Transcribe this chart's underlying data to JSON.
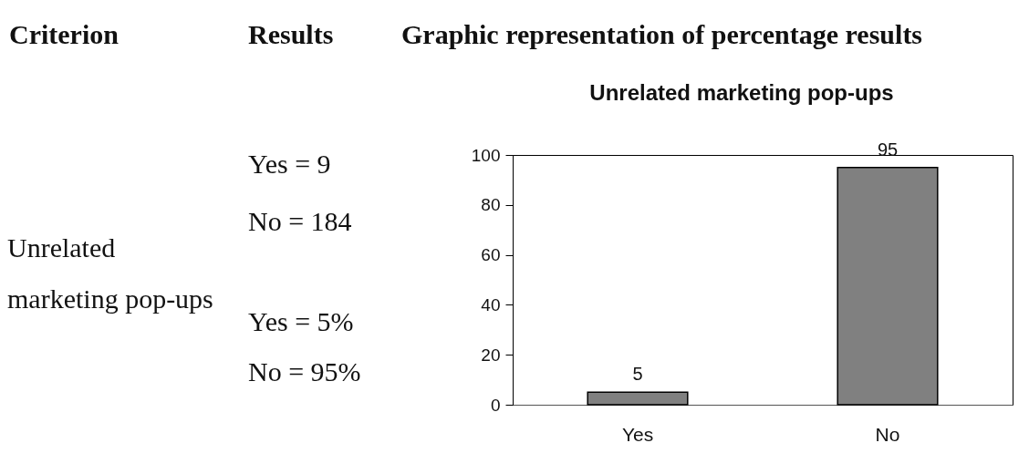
{
  "chart_data": {
    "type": "bar",
    "title": "Unrelated marketing pop-ups",
    "categories": [
      "Yes",
      "No"
    ],
    "values": [
      5,
      95
    ],
    "color": "#808080",
    "ylim": [
      0,
      100
    ],
    "yticks": [
      0,
      20,
      40,
      60,
      80,
      100
    ],
    "data_labels": true,
    "grid": false,
    "annotations": [
      "Criterion",
      "Results",
      "Graphic representation of percentage results",
      "Unrelated marketing pop-ups",
      "Yes = 9",
      "No = 184",
      "Yes = 5%",
      "No = 95%"
    ]
  }
}
